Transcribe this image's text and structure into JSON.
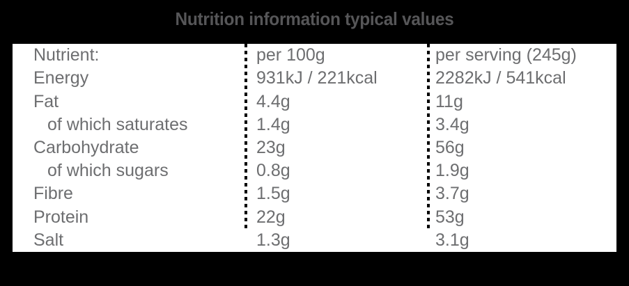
{
  "title": "Nutrition information typical values",
  "table": {
    "columns": [
      "Nutrient:",
      "per 100g",
      "per serving (245g)"
    ],
    "rows": [
      {
        "nutrient": "Energy",
        "per_100g": "931kJ / 221kcal",
        "per_serving": "2282kJ / 541kcal"
      },
      {
        "nutrient": "Fat",
        "per_100g": "4.4g",
        "per_serving": "11g"
      },
      {
        "nutrient": "of which saturates",
        "per_100g": "1.4g",
        "per_serving": "3.4g"
      },
      {
        "nutrient": "Carbohydrate",
        "per_100g": "23g",
        "per_serving": "56g"
      },
      {
        "nutrient": "of which sugars",
        "per_100g": "0.8g",
        "per_serving": "1.9g"
      },
      {
        "nutrient": "Fibre",
        "per_100g": "1.5g",
        "per_serving": "3.7g"
      },
      {
        "nutrient": "Protein",
        "per_100g": "22g",
        "per_serving": "53g"
      },
      {
        "nutrient": "Salt",
        "per_100g": "1.3g",
        "per_serving": "3.1g"
      }
    ]
  },
  "colors": {
    "background": "#000000",
    "panel": "#ffffff",
    "title_text": "#565658",
    "body_text": "#6d6e70",
    "divider": "#000000"
  }
}
